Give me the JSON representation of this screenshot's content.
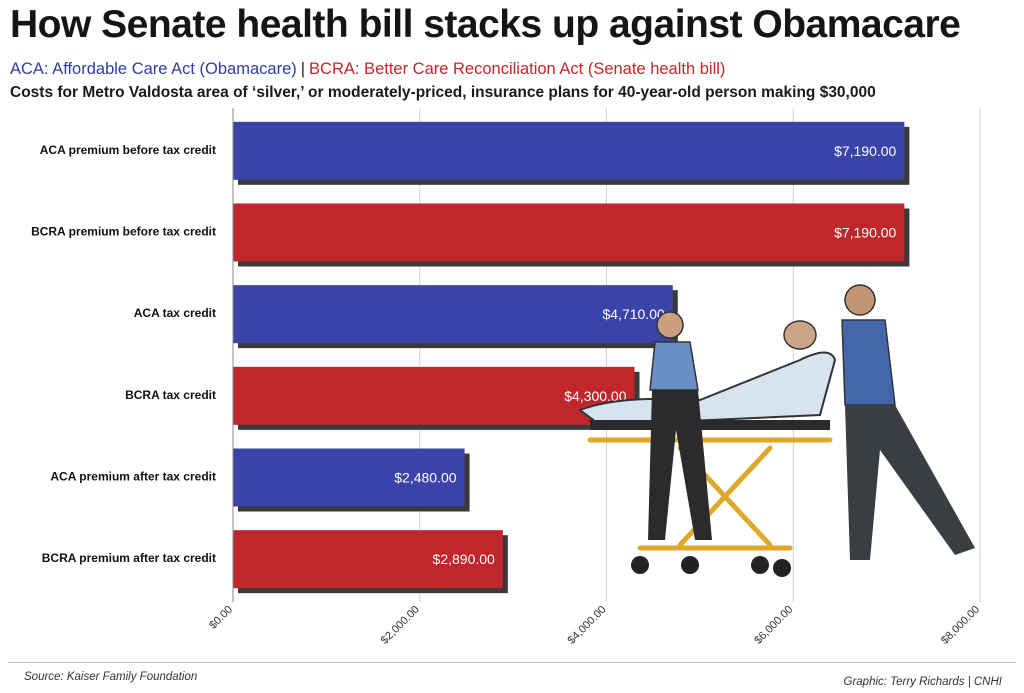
{
  "header": {
    "title": "How Senate health bill stacks up against Obamacare",
    "legend_aca": "ACA: Affordable Care Act (Obamacare)",
    "legend_separator": "|",
    "legend_bcra": "BCRA: Better Care Reconciliation Act (Senate health bill)",
    "subtitle": "Costs for Metro Valdosta area of ‘silver,’ or moderately-priced, insurance plans for 40-year-old person making $30,000"
  },
  "footer": {
    "source": "Source: Kaiser Family Foundation",
    "credit": "Graphic: Terry Richards | CNHI"
  },
  "colors": {
    "aca": "#3a44a8",
    "bcra": "#c0262c",
    "shadow": "#3a3a3a"
  },
  "illustration": {
    "icon": "paramedics-stretcher-illustration"
  },
  "chart_data": {
    "type": "bar",
    "orientation": "horizontal",
    "categories": [
      "ACA premium before tax credit",
      "BCRA premium before tax credit",
      "ACA tax credit",
      "BCRA tax credit",
      "ACA premium after tax credit",
      "BCRA premium after tax credit"
    ],
    "values": [
      7190,
      7190,
      4710,
      4300,
      2480,
      2890
    ],
    "value_labels": [
      "$7,190.00",
      "$7,190.00",
      "$4,710.00",
      "$4,300.00",
      "$2,480.00",
      "$2,890.00"
    ],
    "bar_groups": [
      "aca",
      "bcra",
      "aca",
      "bcra",
      "aca",
      "bcra"
    ],
    "xlim": [
      0,
      8000
    ],
    "x_ticks": [
      0,
      2000,
      4000,
      6000,
      8000
    ],
    "x_tick_labels": [
      "$0.00",
      "$2,000.00",
      "$4,000.00",
      "$6,000.00",
      "$8,000.00"
    ],
    "grid": true,
    "xlabel": "",
    "ylabel": ""
  }
}
